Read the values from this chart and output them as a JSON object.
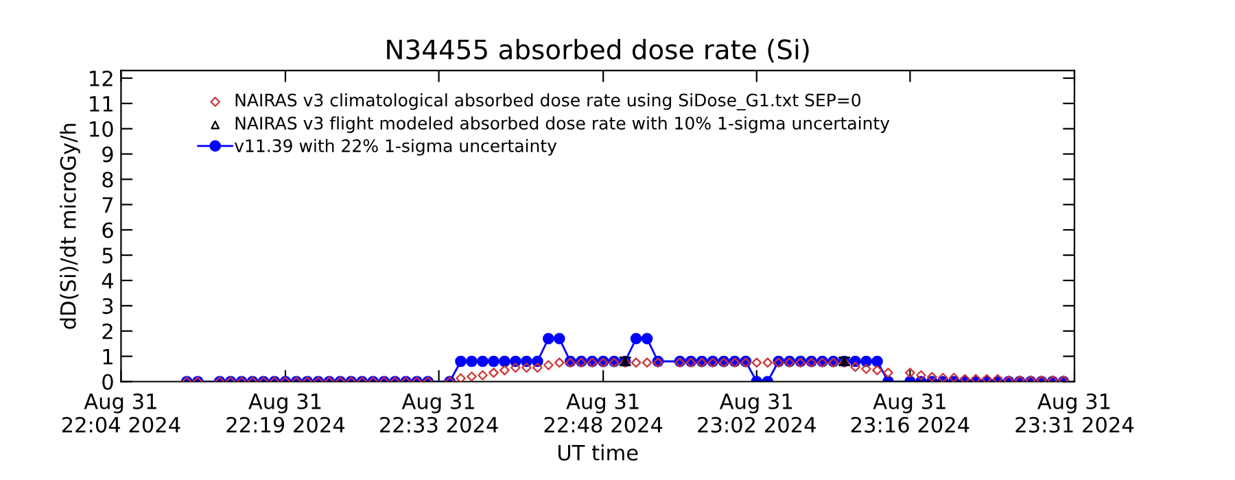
{
  "chart_data": {
    "type": "line",
    "title": "N34455 absorbed dose rate (Si)",
    "xlabel": "UT time",
    "ylabel": "dD(Si)/dt microGy/h",
    "x": [
      "2024-08-31T22:10",
      "2024-08-31T22:11",
      "2024-08-31T22:13",
      "2024-08-31T22:14",
      "2024-08-31T22:15",
      "2024-08-31T22:16",
      "2024-08-31T22:17",
      "2024-08-31T22:18",
      "2024-08-31T22:19",
      "2024-08-31T22:20",
      "2024-08-31T22:21",
      "2024-08-31T22:22",
      "2024-08-31T22:23",
      "2024-08-31T22:24",
      "2024-08-31T22:25",
      "2024-08-31T22:26",
      "2024-08-31T22:27",
      "2024-08-31T22:28",
      "2024-08-31T22:29",
      "2024-08-31T22:30",
      "2024-08-31T22:31",
      "2024-08-31T22:32",
      "2024-08-31T22:34",
      "2024-08-31T22:35",
      "2024-08-31T22:36",
      "2024-08-31T22:37",
      "2024-08-31T22:38",
      "2024-08-31T22:39",
      "2024-08-31T22:40",
      "2024-08-31T22:41",
      "2024-08-31T22:42",
      "2024-08-31T22:43",
      "2024-08-31T22:44",
      "2024-08-31T22:45",
      "2024-08-31T22:46",
      "2024-08-31T22:47",
      "2024-08-31T22:48",
      "2024-08-31T22:49",
      "2024-08-31T22:50",
      "2024-08-31T22:51",
      "2024-08-31T22:52",
      "2024-08-31T22:53",
      "2024-08-31T22:55",
      "2024-08-31T22:56",
      "2024-08-31T22:57",
      "2024-08-31T22:58",
      "2024-08-31T22:59",
      "2024-08-31T23:00",
      "2024-08-31T23:01",
      "2024-08-31T23:02",
      "2024-08-31T23:03",
      "2024-08-31T23:04",
      "2024-08-31T23:05",
      "2024-08-31T23:06",
      "2024-08-31T23:07",
      "2024-08-31T23:08",
      "2024-08-31T23:09",
      "2024-08-31T23:10",
      "2024-08-31T23:11",
      "2024-08-31T23:12",
      "2024-08-31T23:13",
      "2024-08-31T23:14",
      "2024-08-31T23:16",
      "2024-08-31T23:17",
      "2024-08-31T23:18",
      "2024-08-31T23:19",
      "2024-08-31T23:20",
      "2024-08-31T23:21",
      "2024-08-31T23:22",
      "2024-08-31T23:23",
      "2024-08-31T23:24",
      "2024-08-31T23:25",
      "2024-08-31T23:26",
      "2024-08-31T23:27",
      "2024-08-31T23:28",
      "2024-08-31T23:29",
      "2024-08-31T23:30"
    ],
    "series": [
      {
        "name": "NAIRAS v3 climatological absorbed dose rate using SiDose_G1.txt SEP=0",
        "type": "scatter",
        "marker": "diamond",
        "color": "#cc3333",
        "values": [
          0,
          0,
          0,
          0,
          0,
          0,
          0,
          0,
          0,
          0,
          0,
          0,
          0,
          0,
          0,
          0,
          0,
          0,
          0,
          0,
          0,
          0,
          0,
          0.13,
          0.2,
          0.25,
          0.35,
          0.45,
          0.55,
          0.55,
          0.55,
          0.65,
          0.75,
          0.75,
          0.75,
          0.75,
          0.75,
          0.75,
          0.75,
          0.75,
          0.75,
          0.75,
          0.75,
          0.75,
          0.75,
          0.75,
          0.75,
          0.75,
          0.75,
          0.75,
          0.75,
          0.75,
          0.75,
          0.75,
          0.75,
          0.75,
          0.75,
          0.75,
          0.58,
          0.5,
          0.45,
          0.35,
          0.35,
          0.25,
          0.18,
          0.15,
          0.15,
          0.1,
          0.1,
          0.1,
          0.1,
          0.05,
          0.05,
          0.05,
          0.05,
          0.05,
          0.05
        ]
      },
      {
        "name": "NAIRAS v3 flight modeled absorbed dose rate with 10% 1-sigma uncertainty",
        "type": "scatter",
        "marker": "triangle",
        "color": "#000000",
        "values": [
          null,
          null,
          null,
          null,
          null,
          null,
          null,
          null,
          null,
          null,
          null,
          null,
          null,
          null,
          null,
          null,
          null,
          null,
          null,
          null,
          null,
          null,
          null,
          null,
          null,
          null,
          null,
          null,
          null,
          null,
          null,
          null,
          null,
          null,
          null,
          null,
          null,
          null,
          0.8,
          null,
          null,
          null,
          null,
          null,
          null,
          null,
          null,
          null,
          null,
          null,
          null,
          null,
          null,
          null,
          null,
          null,
          null,
          0.8,
          null,
          null,
          null,
          null,
          null,
          null,
          null,
          null,
          null,
          null,
          null,
          null,
          null,
          null,
          null,
          null,
          null,
          null,
          null
        ],
        "errors": [
          null,
          null,
          null,
          null,
          null,
          null,
          null,
          null,
          null,
          null,
          null,
          null,
          null,
          null,
          null,
          null,
          null,
          null,
          null,
          null,
          null,
          null,
          null,
          null,
          null,
          null,
          null,
          null,
          null,
          null,
          null,
          null,
          null,
          null,
          null,
          null,
          null,
          null,
          0.15,
          null,
          null,
          null,
          null,
          null,
          null,
          null,
          null,
          null,
          null,
          null,
          null,
          null,
          null,
          null,
          null,
          null,
          null,
          0.15,
          null,
          null,
          null,
          null,
          null,
          null,
          null,
          null,
          null,
          null,
          null,
          null,
          null,
          null,
          null,
          null,
          null,
          null,
          null
        ]
      },
      {
        "name": "v11.39 with 22% 1-sigma uncertainty",
        "marker": "circle",
        "line_style": "solid",
        "color": "#0000ff",
        "values": [
          0,
          0,
          0,
          0,
          0,
          0,
          0,
          0,
          0,
          0,
          0,
          0,
          0,
          0,
          0,
          0,
          0,
          0,
          0,
          0,
          0,
          0,
          0,
          0.8,
          0.8,
          0.8,
          0.8,
          0.8,
          0.8,
          0.8,
          0.8,
          1.7,
          1.7,
          0.8,
          0.8,
          0.8,
          0.8,
          0.8,
          0.8,
          1.7,
          1.7,
          0.8,
          0.8,
          0.8,
          0.8,
          0.8,
          0.8,
          0.8,
          0.8,
          0,
          0,
          0.8,
          0.8,
          0.8,
          0.8,
          0.8,
          0.8,
          0.8,
          0.8,
          0.8,
          0.8,
          0,
          0,
          0,
          0,
          0,
          0,
          0,
          0,
          0,
          0,
          0,
          0,
          0,
          0,
          0,
          0
        ]
      }
    ],
    "xlim": [
      "2024-08-31T22:04",
      "2024-08-31T23:31"
    ],
    "xticks": [
      {
        "value": "2024-08-31T22:04",
        "label": "Aug 31\n22:04 2024"
      },
      {
        "value": "2024-08-31T22:19",
        "label": "Aug 31\n22:19 2024"
      },
      {
        "value": "2024-08-31T22:33",
        "label": "Aug 31\n22:33 2024"
      },
      {
        "value": "2024-08-31T22:48",
        "label": "Aug 31\n22:48 2024"
      },
      {
        "value": "2024-08-31T23:02",
        "label": "Aug 31\n23:02 2024"
      },
      {
        "value": "2024-08-31T23:16",
        "label": "Aug 31\n23:16 2024"
      },
      {
        "value": "2024-08-31T23:31",
        "label": "Aug 31\n23:31 2024"
      }
    ],
    "ylim": [
      0,
      12.3
    ],
    "yticks": [
      0,
      1,
      2,
      3,
      4,
      5,
      6,
      7,
      8,
      9,
      10,
      11,
      12
    ],
    "grid": false,
    "legend": "top left"
  }
}
